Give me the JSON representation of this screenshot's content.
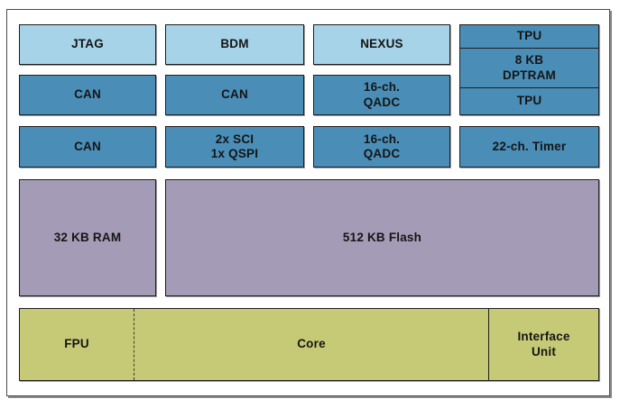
{
  "diagram": {
    "colors": {
      "light_blue": "#a6d3e8",
      "medium_blue": "#4a8eb8",
      "purple": "#a49cb6",
      "green": "#c6ca76",
      "box_border": "#1e1e1e",
      "frame_border": "#4c4c4e",
      "frame_shadow": "#8a8a8d",
      "text": "#151515"
    },
    "blocks": {
      "jtag": "JTAG",
      "bdm": "BDM",
      "nexus": "NEXUS",
      "tpu_top": "TPU",
      "dptram": "8 KB\nDPTRAM",
      "tpu_bottom": "TPU",
      "can_row2_col1": "CAN",
      "can_row2_col2": "CAN",
      "qadc_row2": "16-ch.\nQADC",
      "can_row3_col1": "CAN",
      "sci_qspi": "2x SCI\n1x QSPI",
      "qadc_row3": "16-ch.\nQADC",
      "timer": "22-ch. Timer",
      "ram": "32 KB RAM",
      "flash": "512 KB Flash",
      "fpu": "FPU",
      "core": "Core",
      "interface_unit": "Interface\nUnit"
    }
  }
}
